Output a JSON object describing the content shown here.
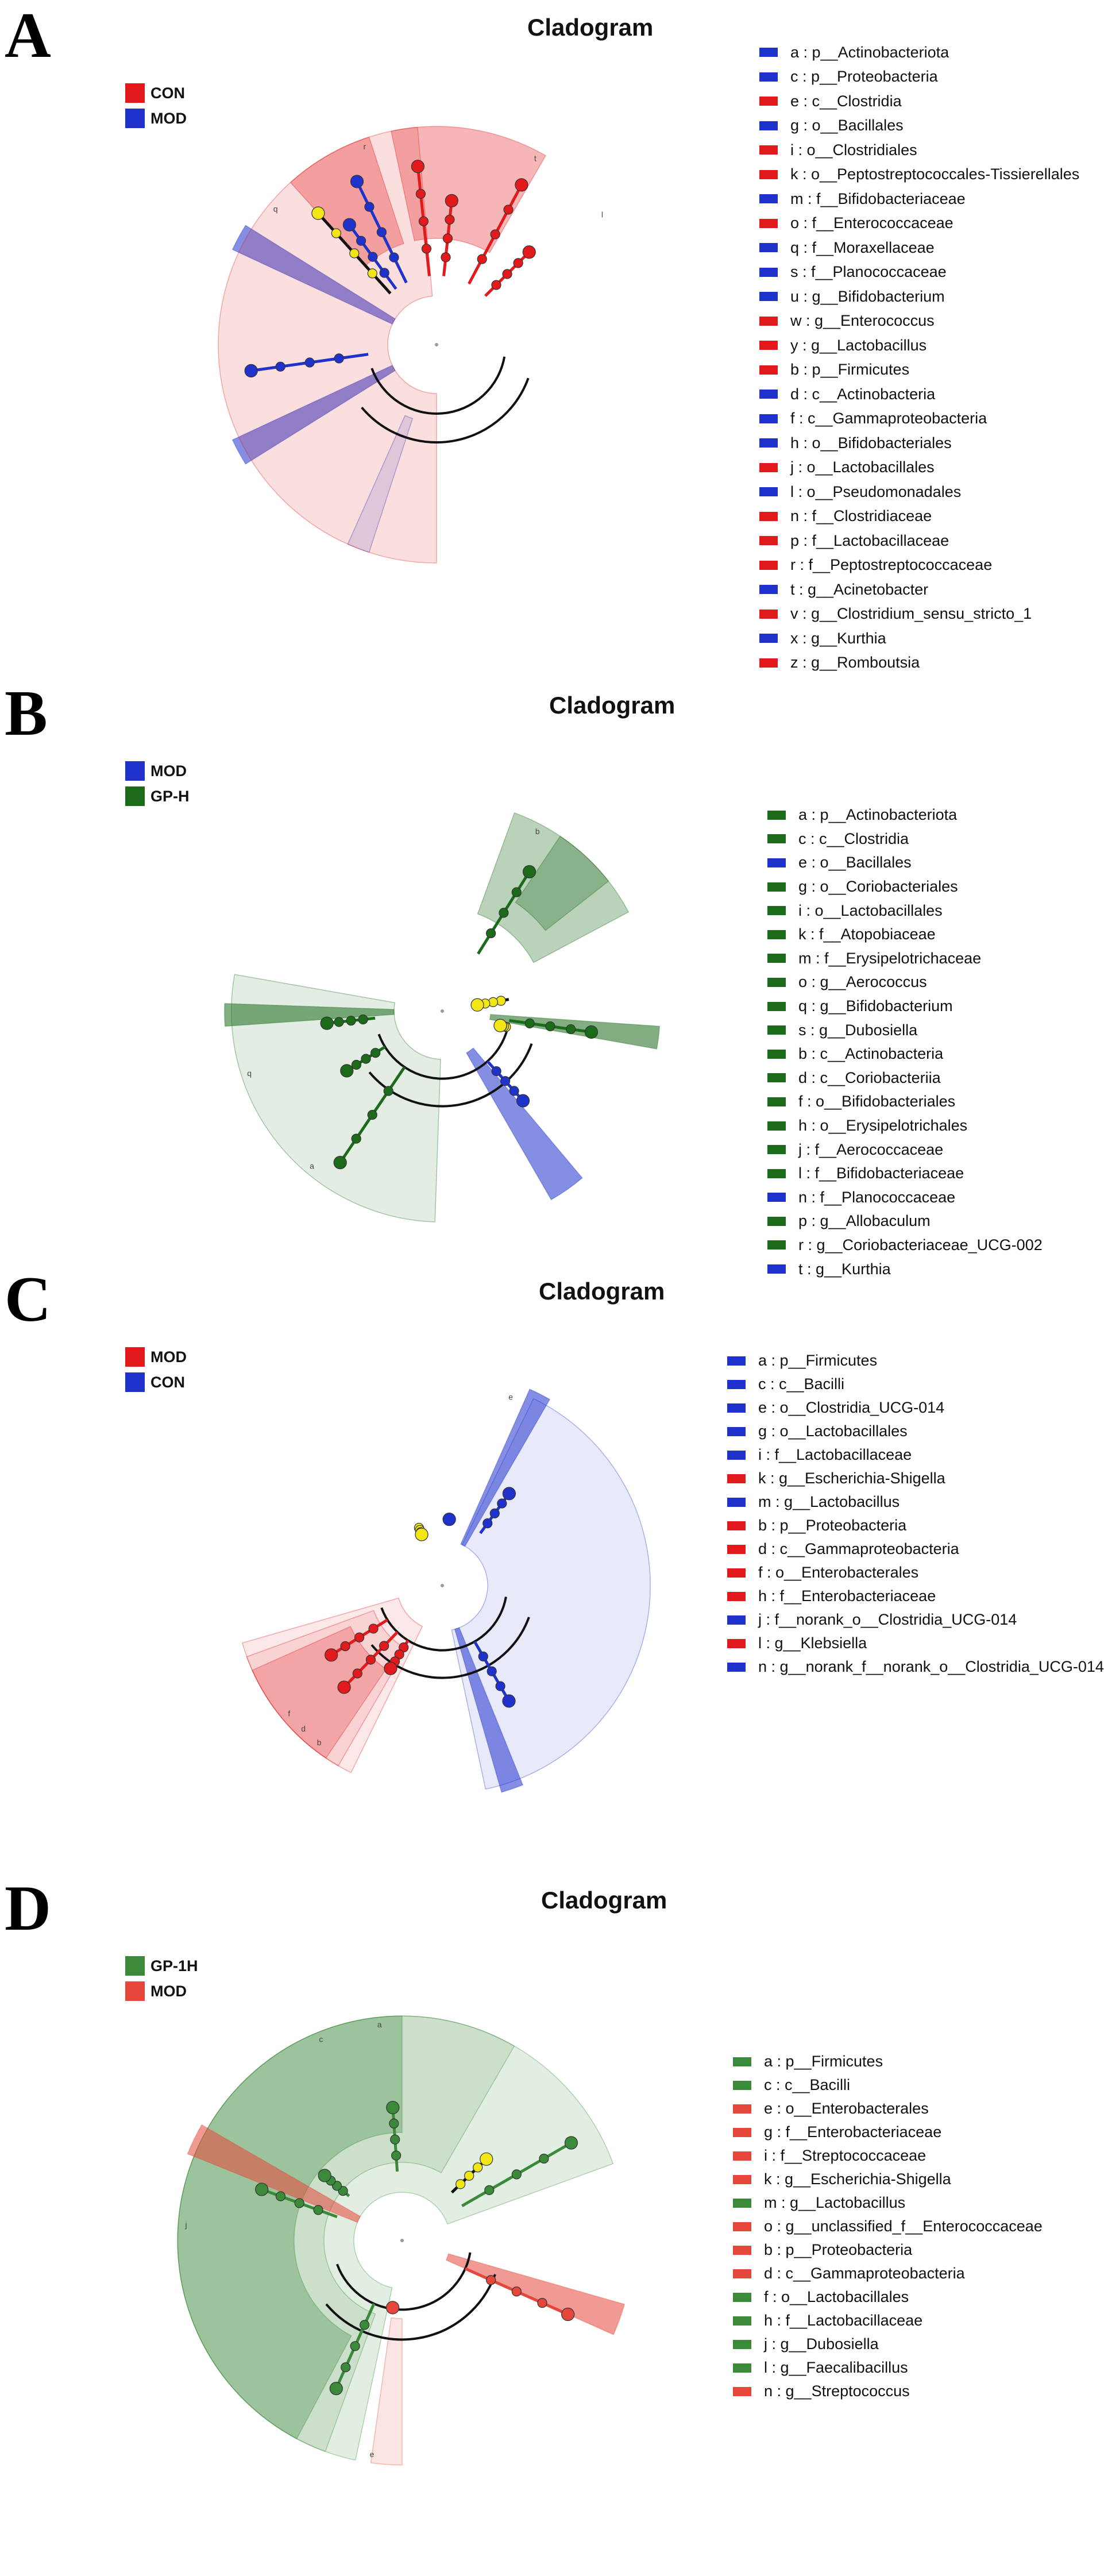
{
  "panels": [
    {
      "letter": "A",
      "title": "Cladogram",
      "groups": [
        {
          "name": "CON",
          "color": "#e31a1c"
        },
        {
          "name": "MOD",
          "color": "#1f33cc"
        }
      ],
      "shade_opacity": [
        0.14,
        0.32
      ],
      "taxa": [
        {
          "label": "a : p__Actinobacteriota",
          "group": 1
        },
        {
          "label": "c : p__Proteobacteria",
          "group": 1
        },
        {
          "label": "e : c__Clostridia",
          "group": 0
        },
        {
          "label": "g : o__Bacillales",
          "group": 1
        },
        {
          "label": "i : o__Clostridiales",
          "group": 0
        },
        {
          "label": "k : o__Peptostreptococcales-Tissierellales",
          "group": 0
        },
        {
          "label": "m : f__Bifidobacteriaceae",
          "group": 1
        },
        {
          "label": "o : f__Enterococcaceae",
          "group": 0
        },
        {
          "label": "q : f__Moraxellaceae",
          "group": 1
        },
        {
          "label": "s : f__Planococcaceae",
          "group": 1
        },
        {
          "label": "u : g__Bifidobacterium",
          "group": 1
        },
        {
          "label": "w : g__Enterococcus",
          "group": 0
        },
        {
          "label": "y : g__Lactobacillus",
          "group": 0
        },
        {
          "label": "b : p__Firmicutes",
          "group": 0
        },
        {
          "label": "d : c__Actinobacteria",
          "group": 1
        },
        {
          "label": "f : c__Gammaproteobacteria",
          "group": 1
        },
        {
          "label": "h : o__Bifidobacteriales",
          "group": 1
        },
        {
          "label": "j : o__Lactobacillales",
          "group": 0
        },
        {
          "label": "l : o__Pseudomonadales",
          "group": 1
        },
        {
          "label": "n : f__Clostridiaceae",
          "group": 0
        },
        {
          "label": "p : f__Lactobacillaceae",
          "group": 0
        },
        {
          "label": "r : f__Peptostreptococcaceae",
          "group": 0
        },
        {
          "label": "t : g__Acinetobacter",
          "group": 1
        },
        {
          "label": "v : g__Clostridium_sensu_stricto_1",
          "group": 0
        },
        {
          "label": "x : g__Kurthia",
          "group": 1
        },
        {
          "label": "z : g__Romboutsia",
          "group": 0
        }
      ],
      "clades": [
        {
          "group": 1,
          "from": 148,
          "to": 155,
          "level": 1,
          "shade": false
        },
        {
          "group": 1,
          "from": 205,
          "to": 212,
          "level": 1,
          "shade": false
        },
        {
          "group": 1,
          "from": 246,
          "to": 252,
          "level": 2,
          "shade": true
        },
        {
          "group": 0,
          "from": 60,
          "to": 102,
          "level": 3,
          "shade": true
        },
        {
          "group": 0,
          "from": 108,
          "to": 132,
          "level": 3,
          "shade": true
        },
        {
          "group": 0,
          "from": 95,
          "to": 270,
          "level": 1,
          "shade": true
        }
      ],
      "tree": {
        "nodes": [
          {
            "angle": 126,
            "r": 258,
            "group": 1
          },
          {
            "angle": 116,
            "r": 316,
            "group": 1
          },
          {
            "angle": 84,
            "r": 252,
            "group": 0
          },
          {
            "angle": 62,
            "r": 315,
            "group": 0
          },
          {
            "angle": 96,
            "r": 312,
            "group": 0
          },
          {
            "angle": 132,
            "r": 308,
            "group": -1
          },
          {
            "angle": 188,
            "r": 326,
            "group": 1
          },
          {
            "angle": 45,
            "r": 228,
            "group": 0
          }
        ]
      },
      "labels": {
        "letters": [
          "q",
          "r",
          "l",
          "t"
        ],
        "letter_angles": [
          140,
          110,
          38,
          62
        ]
      }
    },
    {
      "letter": "B",
      "title": "Cladogram",
      "groups": [
        {
          "name": "MOD",
          "color": "#1f33cc"
        },
        {
          "name": "GP-H",
          "color": "#1b6b1b"
        }
      ],
      "shade_opacity": [
        0.12,
        0.3
      ],
      "taxa": [
        {
          "label": "a : p__Actinobacteriota",
          "group": 1
        },
        {
          "label": "c : c__Clostridia",
          "group": 1
        },
        {
          "label": "e : o__Bacillales",
          "group": 0
        },
        {
          "label": "g : o__Coriobacteriales",
          "group": 1
        },
        {
          "label": "i : o__Lactobacillales",
          "group": 1
        },
        {
          "label": "k : f__Atopobiaceae",
          "group": 1
        },
        {
          "label": "m : f__Erysipelotrichaceae",
          "group": 1
        },
        {
          "label": "o : g__Aerococcus",
          "group": 1
        },
        {
          "label": "q : g__Bifidobacterium",
          "group": 1
        },
        {
          "label": "s : g__Dubosiella",
          "group": 1
        },
        {
          "label": "b : c__Actinobacteria",
          "group": 1
        },
        {
          "label": "d : c__Coriobacteriia",
          "group": 1
        },
        {
          "label": "f : o__Bifidobacteriales",
          "group": 1
        },
        {
          "label": "h : o__Erysipelotrichales",
          "group": 1
        },
        {
          "label": "j : f__Aerococcaceae",
          "group": 1
        },
        {
          "label": "l : f__Bifidobacteriaceae",
          "group": 1
        },
        {
          "label": "n : f__Planococcaceae",
          "group": 0
        },
        {
          "label": "p : g__Allobaculum",
          "group": 1
        },
        {
          "label": "r : g__Coriobacteriaceae_UCG-002",
          "group": 1
        },
        {
          "label": "t : g__Kurthia",
          "group": 0
        }
      ],
      "clades": [
        {
          "group": 1,
          "from": 170,
          "to": 268,
          "level": 1,
          "shade": true
        },
        {
          "group": 1,
          "from": 28,
          "to": 70,
          "level": 3,
          "shade": true
        },
        {
          "group": 1,
          "from": 38,
          "to": 56,
          "level": 4,
          "shade": true
        },
        {
          "group": 0,
          "from": 300,
          "to": 310,
          "level": 1,
          "shade": false
        },
        {
          "group": 1,
          "from": 350,
          "to": 356,
          "level": 1,
          "shade": false
        },
        {
          "group": 1,
          "from": 178,
          "to": 184,
          "level": 1,
          "shade": false
        }
      ],
      "tree": {
        "nodes": [
          {
            "angle": 236,
            "r": 318,
            "group": 1
          },
          {
            "angle": 212,
            "r": 196,
            "group": 1
          },
          {
            "angle": 186,
            "r": 202,
            "group": 1
          },
          {
            "angle": 58,
            "r": 286,
            "group": 1
          },
          {
            "angle": 352,
            "r": 262,
            "group": 1
          },
          {
            "angle": 312,
            "r": 210,
            "group": 0
          },
          {
            "angle": 10,
            "r": 62,
            "group": -1
          },
          {
            "angle": 346,
            "r": 104,
            "group": -1
          }
        ]
      },
      "labels": {
        "letters": [
          "q",
          "a",
          "b"
        ],
        "letter_angles": [
          198,
          230,
          62
        ]
      }
    },
    {
      "letter": "C",
      "title": "Cladogram",
      "groups": [
        {
          "name": "MOD",
          "color": "#e31a1c"
        },
        {
          "name": "CON",
          "color": "#1f33cc"
        }
      ],
      "shade_opacity": [
        0.1,
        0.25
      ],
      "taxa": [
        {
          "label": "a : p__Firmicutes",
          "group": 1
        },
        {
          "label": "c : c__Bacilli",
          "group": 1
        },
        {
          "label": "e : o__Clostridia_UCG-014",
          "group": 1
        },
        {
          "label": "g : o__Lactobacillales",
          "group": 1
        },
        {
          "label": "i : f__Lactobacillaceae",
          "group": 1
        },
        {
          "label": "k : g__Escherichia-Shigella",
          "group": 0
        },
        {
          "label": "m : g__Lactobacillus",
          "group": 1
        },
        {
          "label": "b : p__Proteobacteria",
          "group": 0
        },
        {
          "label": "d : c__Gammaproteobacteria",
          "group": 0
        },
        {
          "label": "f : o__Enterobacterales",
          "group": 0
        },
        {
          "label": "h : f__Enterobacteriaceae",
          "group": 0
        },
        {
          "label": "j : f__norank_o__Clostridia_UCG-014",
          "group": 1
        },
        {
          "label": "l : g__Klebsiella",
          "group": 0
        },
        {
          "label": "n : g__norank_f__norank_o__Clostridia_UCG-014",
          "group": 1
        }
      ],
      "clades": [
        {
          "group": 0,
          "from": 196,
          "to": 244,
          "level": 1,
          "shade": true
        },
        {
          "group": 0,
          "from": 200,
          "to": 240,
          "level": 2,
          "shade": true
        },
        {
          "group": 0,
          "from": 204,
          "to": 236,
          "level": 3,
          "shade": true
        },
        {
          "group": 1,
          "from": 282,
          "to": 64,
          "level": 1,
          "shade": true
        },
        {
          "group": 1,
          "from": 286,
          "to": 292,
          "level": 1,
          "shade": false
        },
        {
          "group": 1,
          "from": 60,
          "to": 66,
          "level": 1,
          "shade": false
        }
      ],
      "tree": {
        "nodes": [
          {
            "angle": 300,
            "r": 232,
            "group": 1
          },
          {
            "angle": 54,
            "r": 198,
            "group": 1
          },
          {
            "angle": 84,
            "r": 116,
            "group": 1
          },
          {
            "angle": 226,
            "r": 246,
            "group": 0
          },
          {
            "angle": 212,
            "r": 228,
            "group": 0
          },
          {
            "angle": 238,
            "r": 170,
            "group": 0
          },
          {
            "angle": 112,
            "r": 96,
            "group": -1
          }
        ]
      },
      "labels": {
        "letters": [
          "b",
          "d",
          "f",
          "e"
        ],
        "letter_angles": [
          232,
          226,
          220,
          70
        ]
      }
    },
    {
      "letter": "D",
      "title": "Cladogram",
      "groups": [
        {
          "name": "GP-1H",
          "color": "#3a8a3a"
        },
        {
          "name": "MOD",
          "color": "#e5473a"
        }
      ],
      "shade_opacity": [
        0.14,
        0.32
      ],
      "taxa": [
        {
          "label": "a : p__Firmicutes",
          "group": 0
        },
        {
          "label": "c : c__Bacilli",
          "group": 0
        },
        {
          "label": "e : o__Enterobacterales",
          "group": 1
        },
        {
          "label": "g : f__Enterobacteriaceae",
          "group": 1
        },
        {
          "label": "i : f__Streptococcaceae",
          "group": 1
        },
        {
          "label": "k : g__Escherichia-Shigella",
          "group": 1
        },
        {
          "label": "m : g__Lactobacillus",
          "group": 0
        },
        {
          "label": "o : g__unclassified_f__Enterococcaceae",
          "group": 1
        },
        {
          "label": "b : p__Proteobacteria",
          "group": 1
        },
        {
          "label": "d : c__Gammaproteobacteria",
          "group": 1
        },
        {
          "label": "f : o__Lactobacillales",
          "group": 0
        },
        {
          "label": "h : f__Lactobacillaceae",
          "group": 0
        },
        {
          "label": "j : g__Dubosiella",
          "group": 0
        },
        {
          "label": "l : g__Faecalibacillus",
          "group": 0
        },
        {
          "label": "n : g__Streptococcus",
          "group": 1
        }
      ],
      "clades": [
        {
          "group": 0,
          "from": 20,
          "to": 258,
          "level": 1,
          "shade": true
        },
        {
          "group": 0,
          "from": 60,
          "to": 250,
          "level": 2,
          "shade": true
        },
        {
          "group": 0,
          "from": 90,
          "to": 242,
          "level": 3,
          "shade": true
        },
        {
          "group": 1,
          "from": 150,
          "to": 158,
          "level": 1,
          "shade": false
        },
        {
          "group": 1,
          "from": 262,
          "to": 270,
          "level": 2,
          "shade": true
        },
        {
          "group": 1,
          "from": 336,
          "to": 344,
          "level": 1,
          "shade": false
        }
      ],
      "tree": {
        "nodes": [
          {
            "angle": 336,
            "r": 316,
            "group": 1
          },
          {
            "angle": 262,
            "r": 118,
            "group": 1
          },
          {
            "angle": 44,
            "r": 204,
            "group": -1
          },
          {
            "angle": 140,
            "r": 176,
            "group": 0
          },
          {
            "angle": 160,
            "r": 260,
            "group": 0
          },
          {
            "angle": 94,
            "r": 232,
            "group": 0
          },
          {
            "angle": 30,
            "r": 340,
            "group": 0
          },
          {
            "angle": 246,
            "r": 282,
            "group": 0
          }
        ]
      },
      "labels": {
        "letters": [
          "a",
          "c",
          "j",
          "e"
        ],
        "letter_angles": [
          96,
          112,
          176,
          262
        ]
      }
    }
  ]
}
